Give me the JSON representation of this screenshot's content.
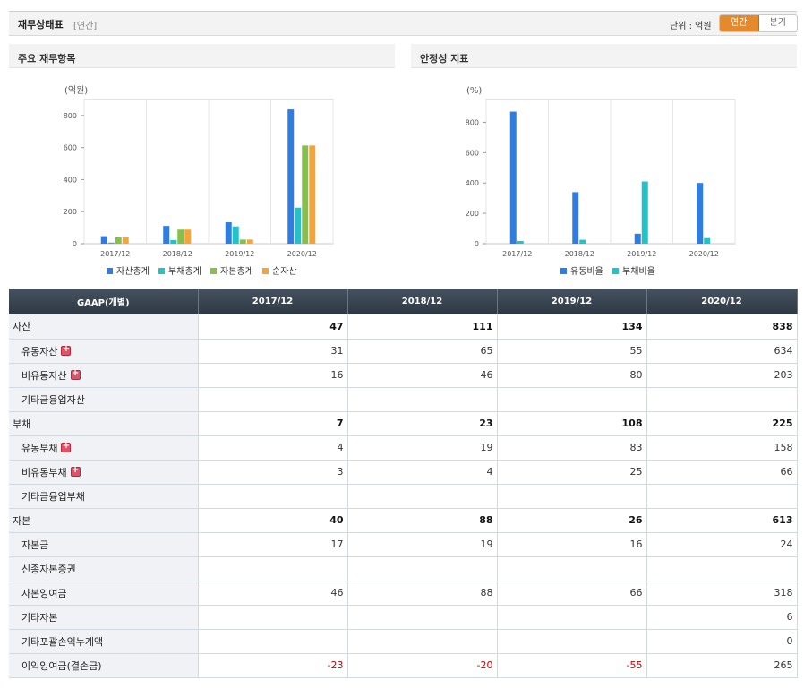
{
  "header": {
    "title": "재무상태표",
    "subtitle": "[연간]",
    "unit": "단위 : 억원",
    "tabs": [
      "연간",
      "분기"
    ],
    "active_tab": "연간",
    "accent": "#e58a2c"
  },
  "chart_data": [
    {
      "type": "bar",
      "panel_title": "주요 재무항목",
      "unit_label": "(억원)",
      "categories": [
        "2017/12",
        "2018/12",
        "2019/12",
        "2020/12"
      ],
      "ylim": [
        0,
        900
      ],
      "yticks": [
        0,
        200,
        400,
        600,
        800
      ],
      "grid": true,
      "legend": "bottom",
      "series": [
        {
          "name": "자산총계",
          "color": "#2f7de1",
          "values": [
            47,
            111,
            134,
            838
          ]
        },
        {
          "name": "부채총계",
          "color": "#22c3c8",
          "values": [
            7,
            23,
            108,
            225
          ]
        },
        {
          "name": "자본총계",
          "color": "#86c04a",
          "values": [
            40,
            88,
            26,
            613
          ]
        },
        {
          "name": "순자산",
          "color": "#f5a538",
          "values": [
            40,
            88,
            26,
            613
          ]
        }
      ]
    },
    {
      "type": "bar",
      "panel_title": "안정성 지표",
      "unit_label": "(%)",
      "categories": [
        "2017/12",
        "2018/12",
        "2019/12",
        "2020/12"
      ],
      "ylim": [
        0,
        950
      ],
      "yticks": [
        0,
        200,
        400,
        600,
        800
      ],
      "grid": true,
      "legend": "bottom",
      "series": [
        {
          "name": "유동비율",
          "color": "#2f7de1",
          "values": [
            870,
            340,
            66,
            400
          ]
        },
        {
          "name": "부채비율",
          "color": "#22c3c8",
          "values": [
            18,
            26,
            410,
            37
          ]
        }
      ]
    }
  ],
  "table": {
    "header": [
      "GAAP(개별)",
      "2017/12",
      "2018/12",
      "2019/12",
      "2020/12"
    ],
    "rows": [
      {
        "label": "자산",
        "level": 0,
        "values": [
          "47",
          "111",
          "134",
          "838"
        ]
      },
      {
        "label": "유동자산",
        "level": 1,
        "expand": true,
        "values": [
          "31",
          "65",
          "55",
          "634"
        ]
      },
      {
        "label": "비유동자산",
        "level": 1,
        "expand": true,
        "values": [
          "16",
          "46",
          "80",
          "203"
        ]
      },
      {
        "label": "기타금융업자산",
        "level": 1,
        "values": [
          "",
          "",
          "",
          ""
        ]
      },
      {
        "label": "부채",
        "level": 0,
        "values": [
          "7",
          "23",
          "108",
          "225"
        ]
      },
      {
        "label": "유동부채",
        "level": 1,
        "expand": true,
        "values": [
          "4",
          "19",
          "83",
          "158"
        ]
      },
      {
        "label": "비유동부채",
        "level": 1,
        "expand": true,
        "values": [
          "3",
          "4",
          "25",
          "66"
        ]
      },
      {
        "label": "기타금융업부채",
        "level": 1,
        "values": [
          "",
          "",
          "",
          ""
        ]
      },
      {
        "label": "자본",
        "level": 0,
        "values": [
          "40",
          "88",
          "26",
          "613"
        ]
      },
      {
        "label": "자본금",
        "level": 1,
        "values": [
          "17",
          "19",
          "16",
          "24"
        ]
      },
      {
        "label": "신종자본증권",
        "level": 1,
        "values": [
          "",
          "",
          "",
          ""
        ]
      },
      {
        "label": "자본잉여금",
        "level": 1,
        "values": [
          "46",
          "88",
          "66",
          "318"
        ]
      },
      {
        "label": "기타자본",
        "level": 1,
        "values": [
          "",
          "",
          "",
          "6"
        ]
      },
      {
        "label": "기타포괄손익누계액",
        "level": 1,
        "values": [
          "",
          "",
          "",
          "0"
        ]
      },
      {
        "label": "이익잉여금(결손금)",
        "level": 1,
        "values": [
          "-23",
          "-20",
          "-55",
          "265"
        ]
      }
    ]
  }
}
